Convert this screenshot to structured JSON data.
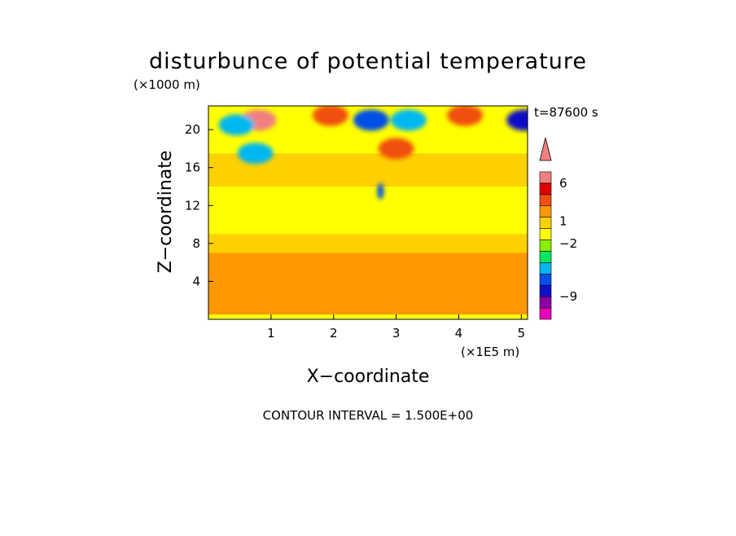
{
  "chart_data": {
    "type": "heatmap",
    "title": "disturbunce of potential temperature",
    "y_unit": "(×1000 m)",
    "x_unit": "(×1E5 m)",
    "xlabel": "X−coordinate",
    "ylabel": "Z−coordinate",
    "time_label": "t=87600 s",
    "contour_interval_label": "CONTOUR INTERVAL = 1.500E+00",
    "xlim": [
      0,
      5.1
    ],
    "ylim": [
      0,
      22.5
    ],
    "x_ticks": [
      1,
      2,
      3,
      4,
      5
    ],
    "y_ticks": [
      4,
      8,
      12,
      16,
      20
    ],
    "colorbar": {
      "levels": [
        -12,
        -10.5,
        -9,
        -7.5,
        -6,
        -4.5,
        -3,
        -1.5,
        0,
        1.5,
        3,
        4.5,
        6,
        7.5,
        9
      ],
      "colors": [
        "#e800b8",
        "#8d00a6",
        "#1010c8",
        "#0050e8",
        "#00b8f0",
        "#00e860",
        "#88f000",
        "#ffff00",
        "#ffd000",
        "#ff9800",
        "#f05010",
        "#e00000",
        "#f08080"
      ],
      "tick_labels": [
        "6",
        "1",
        "−2",
        "−9"
      ],
      "tick_values": [
        6,
        1,
        -2,
        -9
      ],
      "extend": "max"
    },
    "bands": [
      {
        "z_range": [
          0,
          0.5
        ],
        "approx_value": -1.0
      },
      {
        "z_range": [
          0.5,
          7
        ],
        "approx_value": 1.5
      },
      {
        "z_range": [
          7,
          9
        ],
        "approx_value": 0.5
      },
      {
        "z_range": [
          9,
          14
        ],
        "approx_value": -1.0
      },
      {
        "z_range": [
          14,
          17.5
        ],
        "approx_value": 0.5
      },
      {
        "z_range": [
          17.5,
          22.5
        ],
        "approx_value": -1.0
      }
    ],
    "features": [
      {
        "x": 0.8,
        "z": 21,
        "value": 6
      },
      {
        "x": 0.45,
        "z": 20.5,
        "value": -6
      },
      {
        "x": 1.95,
        "z": 21.5,
        "value": 4
      },
      {
        "x": 2.6,
        "z": 21,
        "value": -7
      },
      {
        "x": 3.2,
        "z": 21,
        "value": -6
      },
      {
        "x": 4.1,
        "z": 21.5,
        "value": 4
      },
      {
        "x": 5.05,
        "z": 21,
        "value": -9
      },
      {
        "x": 3.0,
        "z": 18,
        "value": 4
      },
      {
        "x": 0.75,
        "z": 17.5,
        "value": -6
      },
      {
        "x": 2.75,
        "z": 13.5,
        "value": -7
      }
    ]
  }
}
